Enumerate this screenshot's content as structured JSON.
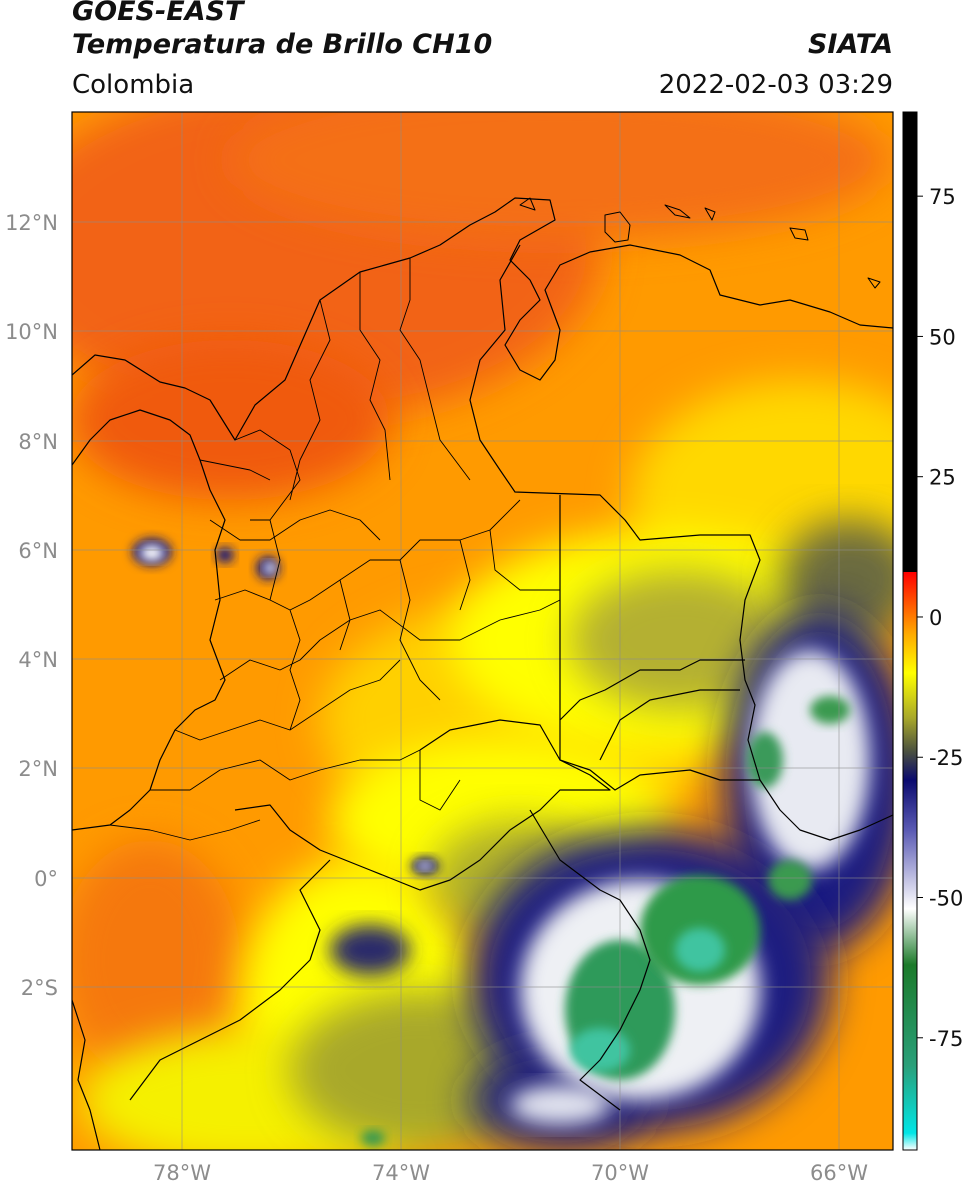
{
  "header": {
    "satellite": "GOES-EAST",
    "product": "Temperatura de Brillo CH10",
    "region": "Colombia",
    "organization": "SIATA",
    "datetime": "2022-02-03 03:29"
  },
  "map": {
    "lat_ticks": [
      "12°N",
      "10°N",
      "8°N",
      "6°N",
      "4°N",
      "2°N",
      "0°",
      "2°S"
    ],
    "lon_ticks": [
      "78°W",
      "74°W",
      "70°W",
      "66°W"
    ],
    "extent": {
      "lon_min": -80,
      "lon_max": -65,
      "lat_min": -5,
      "lat_max": 14
    }
  },
  "colorbar": {
    "ticks": [
      "75",
      "50",
      "25",
      "0",
      "-25",
      "-50",
      "-75"
    ],
    "range": [
      -95,
      90
    ],
    "stops": [
      {
        "value": -95,
        "color": "#ffffff"
      },
      {
        "value": -92,
        "color": "#00e6e6"
      },
      {
        "value": -80,
        "color": "#2aa07a"
      },
      {
        "value": -62,
        "color": "#1c7a2a"
      },
      {
        "value": -52,
        "color": "#ffffff"
      },
      {
        "value": -38,
        "color": "#5a5ab4"
      },
      {
        "value": -29,
        "color": "#0a0a6e"
      },
      {
        "value": -24,
        "color": "#4a5040"
      },
      {
        "value": -18,
        "color": "#a8a82a"
      },
      {
        "value": -10,
        "color": "#ffff00"
      },
      {
        "value": -3,
        "color": "#ffaa00"
      },
      {
        "value": 8,
        "color": "#ff0000"
      },
      {
        "value": 8.01,
        "color": "#000000"
      },
      {
        "value": 90,
        "color": "#000000"
      }
    ]
  },
  "colors": {
    "warm_red": "#f05a10",
    "orange": "#ff9800",
    "yellow": "#ffff00",
    "olive": "#b4b42a",
    "navy": "#0a0a6e",
    "white_cloud": "#ffffff",
    "green": "#2f9a4a",
    "teal": "#3cc8a0",
    "border": "#000000",
    "grid": "#8c8c8c"
  }
}
